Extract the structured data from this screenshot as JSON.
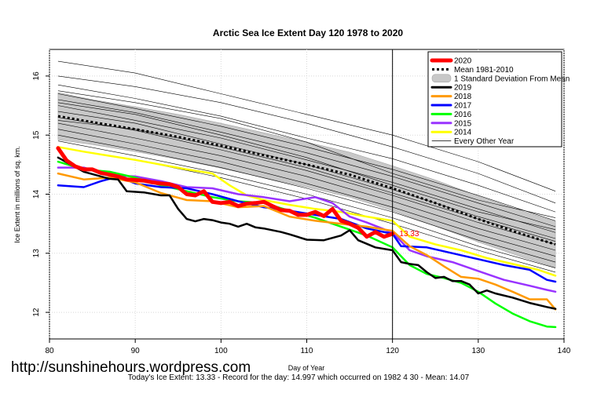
{
  "chart_data": {
    "type": "line",
    "title": "Arctic Sea Ice Extent Day 120 1978 to 2020",
    "xlabel": "Day of Year",
    "ylabel": "Ice Extent in millions of sq. km.",
    "xlim": [
      80,
      140
    ],
    "ylim": [
      11.55,
      16.45
    ],
    "xticks": [
      80,
      90,
      100,
      110,
      120,
      130,
      140
    ],
    "yticks": [
      12,
      13,
      14,
      15,
      16
    ],
    "vline": 120,
    "annotation": {
      "text": "13.33",
      "x": 120.8,
      "y": 13.33,
      "color": "#ff0000"
    },
    "legend_position": "top-right",
    "legend": [
      {
        "label": "2020",
        "color": "#ff0000",
        "style": "solid-thick"
      },
      {
        "label": "Mean 1981-2010",
        "color": "#000000",
        "style": "dotted"
      },
      {
        "label": "1 Standard Deviation From Mean",
        "color": "#c8c8c8",
        "style": "band"
      },
      {
        "label": "2019",
        "color": "#000000",
        "style": "solid"
      },
      {
        "label": "2018",
        "color": "#ff9900",
        "style": "solid"
      },
      {
        "label": "2017",
        "color": "#0000ff",
        "style": "solid"
      },
      {
        "label": "2016",
        "color": "#00ff00",
        "style": "solid"
      },
      {
        "label": "2015",
        "color": "#9933ff",
        "style": "solid"
      },
      {
        "label": "2014",
        "color": "#ffff00",
        "style": "solid"
      },
      {
        "label": "Every Other Year",
        "color": "#000000",
        "style": "thin"
      }
    ],
    "mean_series": {
      "x": [
        81,
        85,
        90,
        95,
        100,
        105,
        110,
        115,
        120,
        125,
        130,
        135,
        139
      ],
      "y": [
        15.32,
        15.22,
        15.1,
        14.97,
        14.82,
        14.66,
        14.5,
        14.33,
        14.1,
        13.85,
        13.58,
        13.33,
        13.15
      ]
    },
    "std_band": {
      "x": [
        81,
        85,
        90,
        95,
        100,
        105,
        110,
        115,
        120,
        125,
        130,
        135,
        139
      ],
      "upper": [
        15.72,
        15.6,
        15.48,
        15.35,
        15.2,
        15.04,
        14.88,
        14.71,
        14.48,
        14.24,
        13.97,
        13.72,
        13.54
      ],
      "lower": [
        14.92,
        14.84,
        14.72,
        14.59,
        14.44,
        14.28,
        14.12,
        13.95,
        13.72,
        13.46,
        13.19,
        12.94,
        12.76
      ]
    },
    "series": [
      {
        "name": "2020",
        "color": "#ff0000",
        "x": [
          81,
          82,
          83,
          84,
          85,
          86,
          87,
          88,
          89,
          90,
          91,
          92,
          93,
          94,
          95,
          96,
          97,
          98,
          99,
          100,
          101,
          102,
          103,
          104,
          105,
          106,
          107,
          108,
          109,
          110,
          111,
          112,
          113,
          114,
          115,
          116,
          117,
          118,
          119,
          120
        ],
        "y": [
          14.78,
          14.57,
          14.47,
          14.42,
          14.42,
          14.36,
          14.33,
          14.3,
          14.25,
          14.24,
          14.23,
          14.2,
          14.18,
          14.17,
          14.12,
          14.0,
          13.98,
          14.05,
          13.87,
          13.85,
          13.87,
          13.8,
          13.84,
          13.85,
          13.87,
          13.8,
          13.73,
          13.72,
          13.65,
          13.65,
          13.7,
          13.63,
          13.75,
          13.55,
          13.5,
          13.43,
          13.28,
          13.36,
          13.28,
          13.33
        ]
      },
      {
        "name": "2019",
        "color": "#000000",
        "x": [
          81,
          84,
          87,
          88,
          89,
          91,
          93,
          94,
          95,
          96,
          97,
          98,
          99,
          100,
          101,
          102,
          103,
          104,
          105,
          107,
          108,
          110,
          112,
          114,
          115,
          116,
          118,
          120,
          121,
          122,
          123,
          124,
          125,
          126,
          127,
          128,
          129,
          130,
          131,
          132,
          134,
          136,
          138,
          139
        ],
        "y": [
          14.62,
          14.38,
          14.26,
          14.25,
          14.05,
          14.03,
          13.98,
          13.98,
          13.75,
          13.58,
          13.54,
          13.58,
          13.56,
          13.52,
          13.5,
          13.45,
          13.5,
          13.44,
          13.42,
          13.36,
          13.32,
          13.23,
          13.22,
          13.3,
          13.39,
          13.22,
          13.1,
          13.05,
          12.85,
          12.82,
          12.8,
          12.68,
          12.58,
          12.6,
          12.53,
          12.53,
          12.47,
          12.32,
          12.37,
          12.32,
          12.25,
          12.16,
          12.09,
          12.06
        ]
      },
      {
        "name": "2018",
        "color": "#ff9900",
        "x": [
          81,
          84,
          87,
          90,
          93,
          96,
          99,
          102,
          105,
          108,
          111,
          114,
          117,
          120,
          122,
          124,
          126,
          128,
          130,
          132,
          134,
          136,
          138,
          139
        ],
        "y": [
          14.35,
          14.25,
          14.28,
          14.2,
          14.02,
          13.9,
          13.88,
          13.78,
          13.8,
          13.62,
          13.55,
          13.5,
          13.45,
          13.38,
          13.12,
          12.97,
          12.78,
          12.6,
          12.57,
          12.47,
          12.35,
          12.22,
          12.22,
          12.05
        ]
      },
      {
        "name": "2017",
        "color": "#0000ff",
        "x": [
          81,
          84,
          86,
          88,
          90,
          93,
          96,
          99,
          102,
          105,
          108,
          111,
          114,
          117,
          120,
          121,
          124,
          127,
          130,
          133,
          136,
          138,
          139
        ],
        "y": [
          14.15,
          14.12,
          14.22,
          14.3,
          14.18,
          14.12,
          14.1,
          14.0,
          13.88,
          13.78,
          13.72,
          13.65,
          13.58,
          13.42,
          13.33,
          13.12,
          13.1,
          13.0,
          12.9,
          12.8,
          12.72,
          12.55,
          12.52
        ]
      },
      {
        "name": "2016",
        "color": "#00ff00",
        "x": [
          81,
          84,
          87,
          90,
          93,
          96,
          99,
          102,
          105,
          108,
          111,
          114,
          117,
          120,
          122,
          124,
          126,
          128,
          130,
          132,
          134,
          136,
          138,
          139
        ],
        "y": [
          14.55,
          14.42,
          14.38,
          14.28,
          14.15,
          14.05,
          13.95,
          13.88,
          13.85,
          13.72,
          13.6,
          13.45,
          13.3,
          13.1,
          12.8,
          12.65,
          12.58,
          12.5,
          12.35,
          12.15,
          11.98,
          11.85,
          11.76,
          11.75
        ]
      },
      {
        "name": "2015",
        "color": "#9933ff",
        "x": [
          81,
          84,
          87,
          90,
          93,
          96,
          99,
          102,
          105,
          108,
          111,
          113,
          115,
          117,
          120,
          122,
          124,
          127,
          130,
          133,
          136,
          138,
          139
        ],
        "y": [
          14.45,
          14.45,
          14.32,
          14.3,
          14.22,
          14.12,
          14.1,
          14.0,
          13.95,
          13.88,
          13.95,
          13.85,
          13.62,
          13.52,
          13.35,
          13.05,
          12.95,
          12.85,
          12.7,
          12.55,
          12.45,
          12.38,
          12.35
        ]
      },
      {
        "name": "2014",
        "color": "#ffff00",
        "x": [
          81,
          84,
          87,
          90,
          93,
          96,
          99,
          101,
          103,
          105,
          108,
          111,
          114,
          117,
          120,
          122,
          125,
          128,
          131,
          134,
          137,
          139
        ],
        "y": [
          14.8,
          14.72,
          14.65,
          14.58,
          14.5,
          14.42,
          14.35,
          14.15,
          13.98,
          13.9,
          13.82,
          13.75,
          13.7,
          13.62,
          13.55,
          13.28,
          13.15,
          13.05,
          12.92,
          12.82,
          12.72,
          12.62
        ]
      }
    ],
    "every_other_year": [
      {
        "x": [
          81,
          90,
          100,
          110,
          120,
          130,
          139
        ],
        "y": [
          16.25,
          16.05,
          15.7,
          15.35,
          15.0,
          14.55,
          14.05
        ]
      },
      {
        "x": [
          81,
          90,
          100,
          110,
          120,
          130,
          139
        ],
        "y": [
          16.0,
          15.82,
          15.55,
          15.2,
          14.8,
          14.35,
          13.85
        ]
      },
      {
        "x": [
          81,
          90,
          100,
          110,
          120,
          130,
          139
        ],
        "y": [
          15.85,
          15.62,
          15.32,
          14.95,
          14.6,
          14.15,
          13.7
        ]
      },
      {
        "x": [
          81,
          90,
          100,
          110,
          120,
          130,
          139
        ],
        "y": [
          15.7,
          15.45,
          15.15,
          14.8,
          14.42,
          13.98,
          13.55
        ]
      },
      {
        "x": [
          81,
          90,
          100,
          110,
          120,
          130,
          139
        ],
        "y": [
          15.6,
          15.38,
          15.05,
          14.7,
          14.3,
          13.85,
          13.45
        ]
      },
      {
        "x": [
          81,
          90,
          100,
          110,
          120,
          130,
          139
        ],
        "y": [
          15.5,
          15.25,
          14.95,
          14.58,
          14.2,
          13.75,
          13.35
        ]
      },
      {
        "x": [
          81,
          90,
          100,
          110,
          120,
          130,
          139
        ],
        "y": [
          15.4,
          15.2,
          14.85,
          14.5,
          14.08,
          13.62,
          13.25
        ]
      },
      {
        "x": [
          81,
          90,
          100,
          110,
          120,
          130,
          139
        ],
        "y": [
          15.3,
          15.08,
          14.75,
          14.4,
          13.98,
          13.52,
          13.15
        ]
      },
      {
        "x": [
          81,
          90,
          100,
          110,
          120,
          130,
          139
        ],
        "y": [
          15.2,
          14.95,
          14.65,
          14.3,
          13.88,
          13.42,
          13.05
        ]
      },
      {
        "x": [
          81,
          90,
          100,
          110,
          120,
          130,
          139
        ],
        "y": [
          15.1,
          14.85,
          14.55,
          14.18,
          13.78,
          13.32,
          12.95
        ]
      },
      {
        "x": [
          81,
          90,
          100,
          110,
          120,
          130,
          139
        ],
        "y": [
          15.0,
          14.75,
          14.45,
          14.1,
          13.7,
          13.22,
          12.85
        ]
      },
      {
        "x": [
          81,
          90,
          100,
          110,
          120,
          130,
          139
        ],
        "y": [
          14.9,
          14.65,
          14.35,
          14.0,
          13.6,
          13.12,
          12.75
        ]
      },
      {
        "x": [
          81,
          90,
          100,
          110,
          120,
          130,
          139
        ],
        "y": [
          14.8,
          14.58,
          14.28,
          13.92,
          13.5,
          13.05,
          12.68
        ]
      },
      {
        "x": [
          81,
          90,
          100,
          110,
          120,
          130,
          139
        ],
        "y": [
          15.75,
          15.55,
          15.28,
          14.88,
          14.35,
          13.9,
          13.6
        ]
      },
      {
        "x": [
          81,
          90,
          100,
          110,
          120,
          130,
          139
        ],
        "y": [
          15.55,
          15.35,
          15.0,
          14.62,
          14.15,
          13.7,
          13.4
        ]
      },
      {
        "x": [
          81,
          90,
          100,
          110,
          120,
          130,
          139
        ],
        "y": [
          15.25,
          15.1,
          14.8,
          14.45,
          14.02,
          13.58,
          13.2
        ]
      }
    ]
  },
  "watermark": "http://sunshinehours.wordpress.com",
  "footer": "Today's Ice Extent: 13.33  - Record for the day: 14.997 which occurred on 1982 4 30  - Mean: 14.07"
}
